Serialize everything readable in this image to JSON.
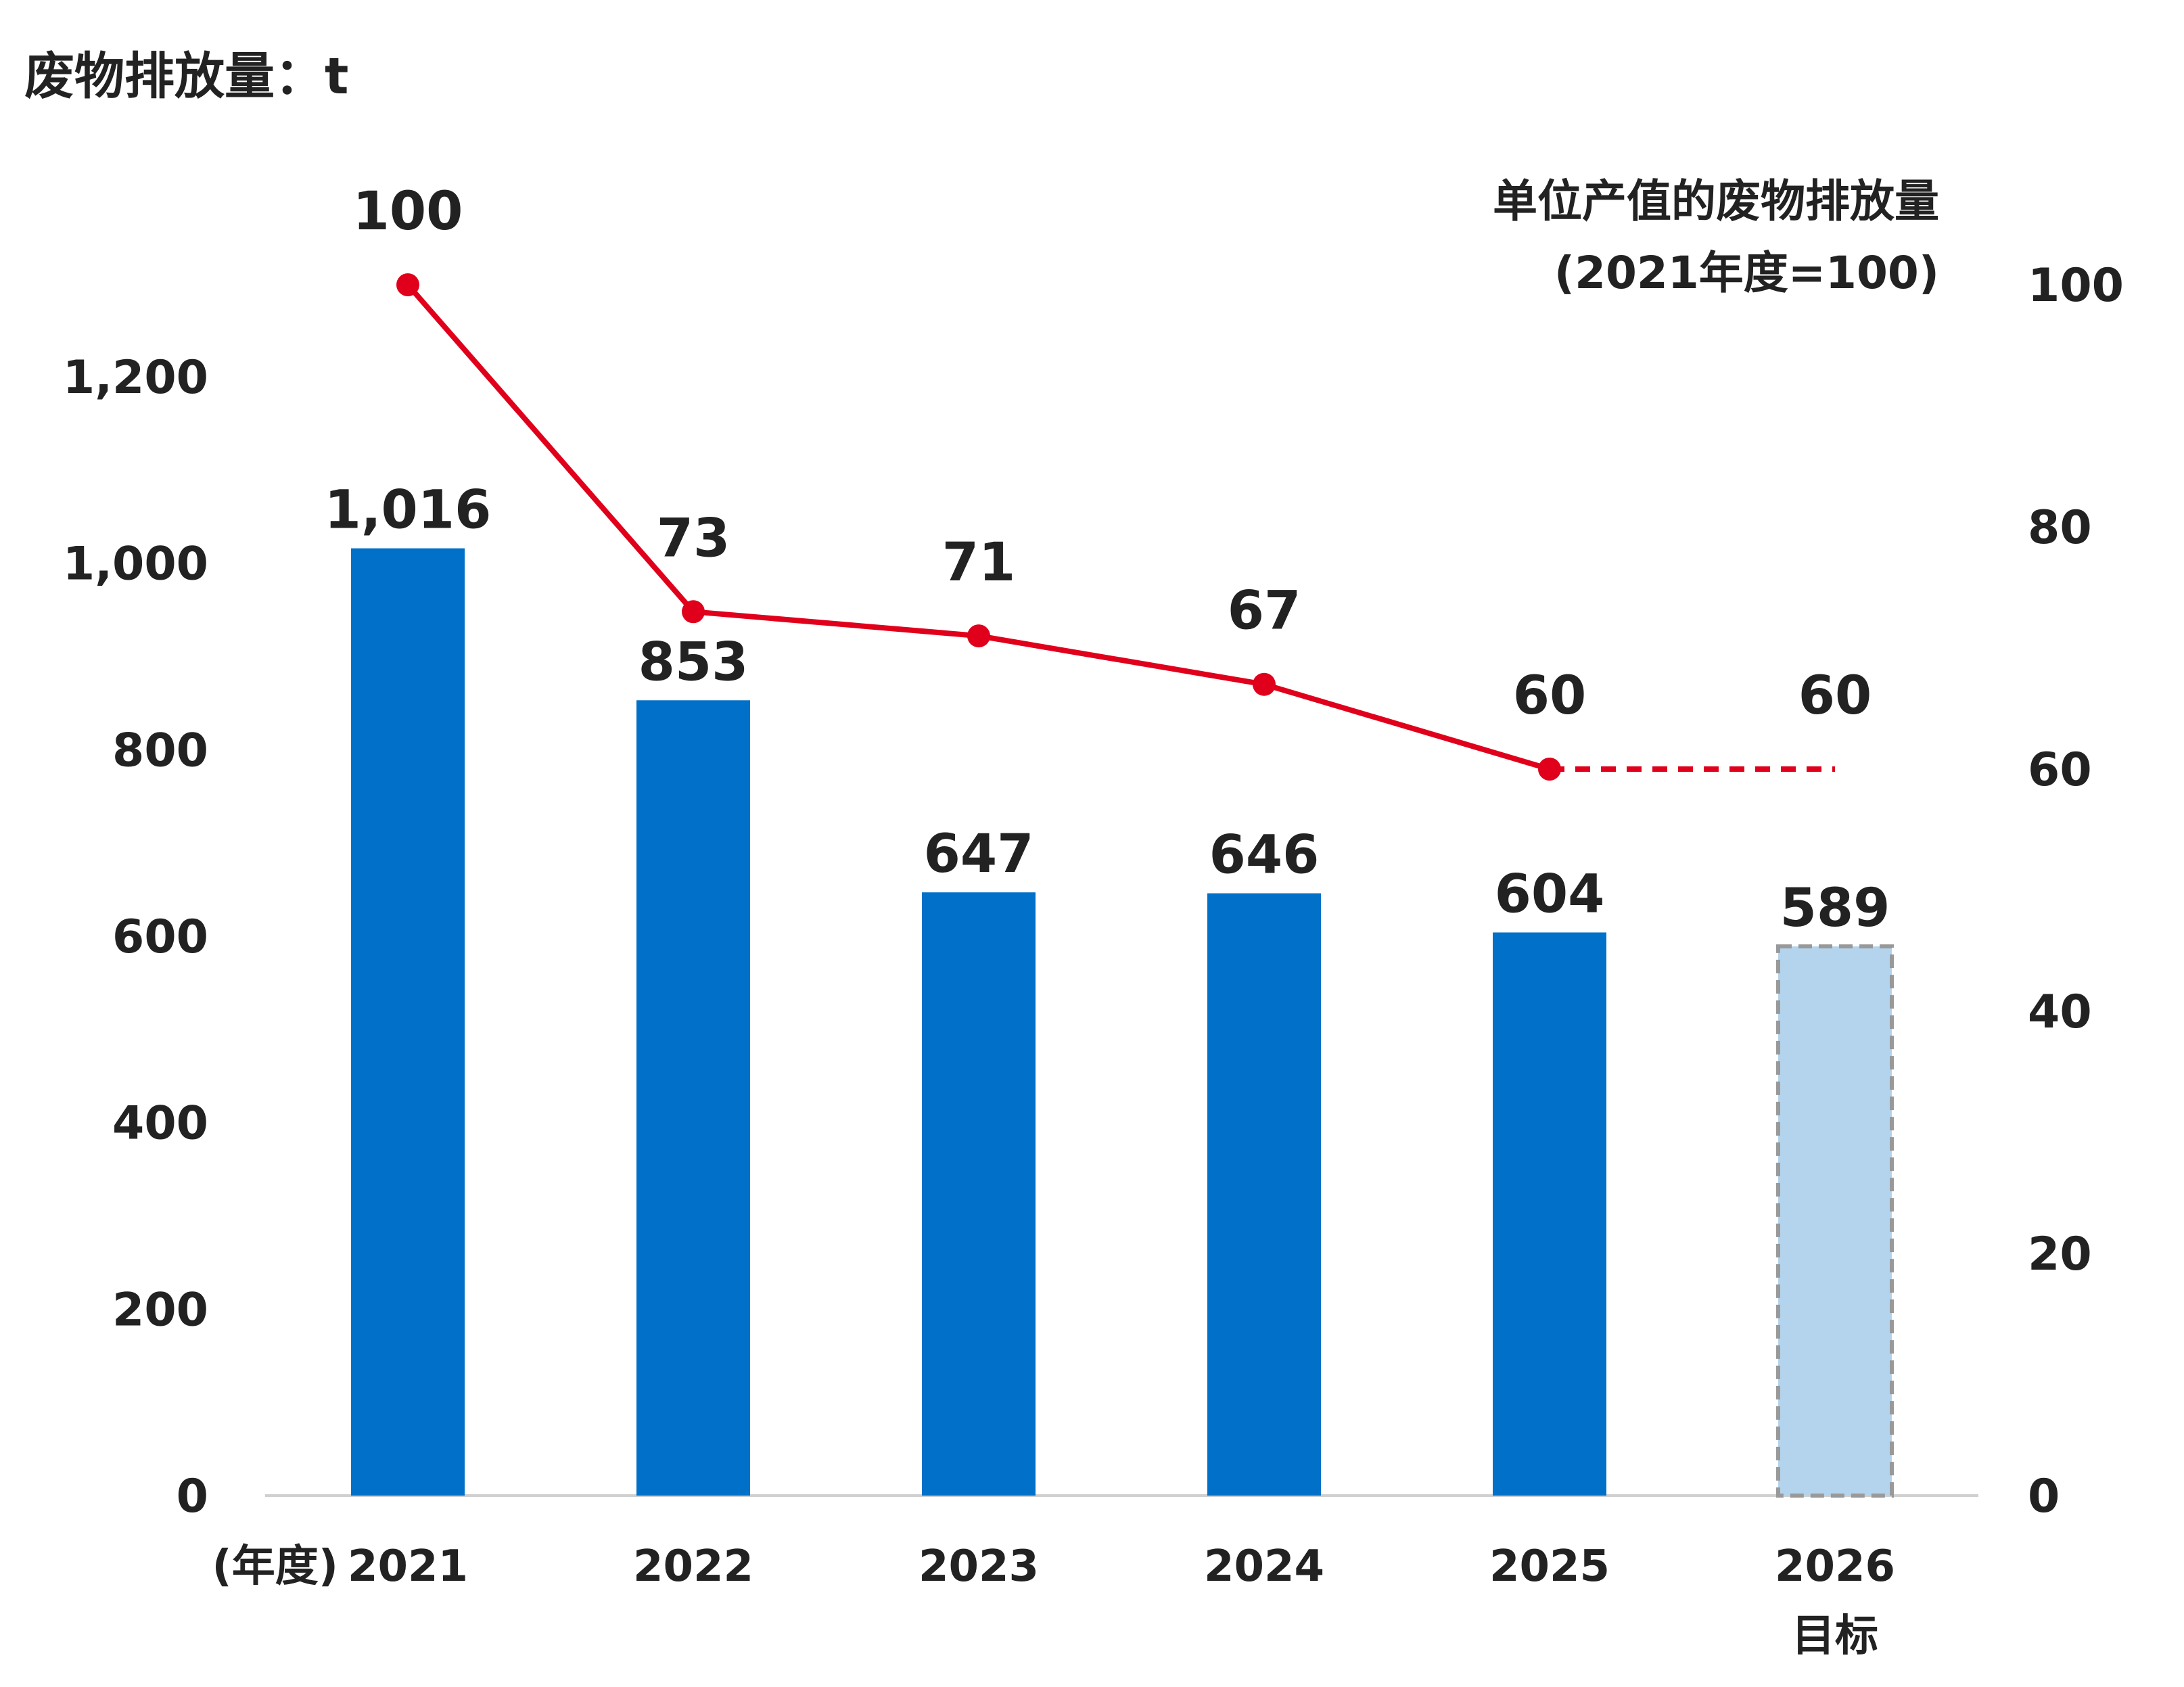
{
  "chart_data": {
    "type": "bar",
    "title": "废物排放量：t",
    "categories": [
      "2021",
      "2022",
      "2023",
      "2024",
      "2025",
      "2026"
    ],
    "x_axis_prefix": "(年度)",
    "category_notes": [
      "",
      "",
      "",
      "",
      "",
      "目标"
    ],
    "left_axis": {
      "ylim": [
        0,
        1200
      ],
      "ticks": [
        0,
        200,
        400,
        600,
        800,
        1000,
        1200
      ],
      "tick_labels": [
        "0",
        "200",
        "400",
        "600",
        "800",
        "1,000",
        "1,200"
      ]
    },
    "right_axis": {
      "ylim": [
        0,
        100
      ],
      "ticks": [
        0,
        20,
        40,
        60,
        80,
        100
      ],
      "tick_labels": [
        "0",
        "20",
        "40",
        "60",
        "80",
        "100"
      ],
      "label_line1": "单位产值的废物排放量",
      "label_line2": "(2021年度=100)"
    },
    "series": [
      {
        "values": [
          1016,
          853,
          647,
          646,
          604,
          589
        ],
        "labels": [
          "1,016",
          "853",
          "647",
          "646",
          "604",
          "589"
        ],
        "axis": "left",
        "type": "bar",
        "color": "#0070c8",
        "target_color": "#b3d4ec",
        "target_border": "#999999"
      },
      {
        "values": [
          100,
          73,
          71,
          67,
          60,
          60
        ],
        "labels": [
          "100",
          "73",
          "71",
          "67",
          "60",
          "60"
        ],
        "axis": "right",
        "type": "line",
        "color": "#e0001b",
        "target_dashed": true
      }
    ],
    "grid": false
  }
}
